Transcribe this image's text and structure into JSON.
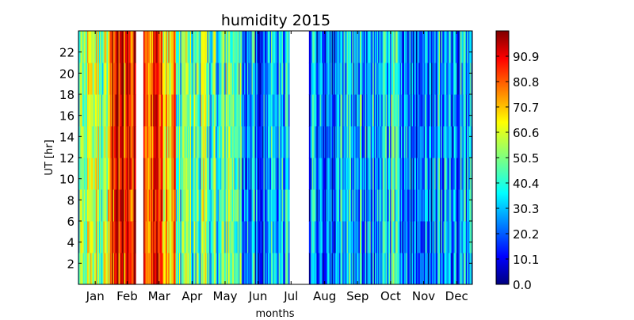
{
  "chart_data": {
    "type": "heatmap",
    "title": "humidity 2015",
    "xlabel": "months",
    "ylabel": "UT [hr]",
    "x_ticks": [
      "Jan",
      "Feb",
      "Mar",
      "Apr",
      "May",
      "Jun",
      "Jul",
      "Aug",
      "Sep",
      "Oct",
      "Nov",
      "Dec"
    ],
    "y_ticks": [
      2,
      4,
      6,
      8,
      10,
      12,
      14,
      16,
      18,
      20,
      22
    ],
    "xlim_days": [
      1,
      365
    ],
    "ylim": [
      0,
      24
    ],
    "colorbar": {
      "colormap": "jet",
      "range": [
        0.0,
        101.0
      ],
      "ticks": [
        "0.0",
        "10.1",
        "20.2",
        "30.3",
        "40.4",
        "50.5",
        "60.6",
        "70.7",
        "80.8",
        "90.9"
      ]
    },
    "missing_data_days": [
      [
        54,
        60
      ],
      [
        196,
        213
      ]
    ],
    "monthly_humidity_profile": {
      "months": [
        "Jan",
        "Feb",
        "Mar",
        "Apr",
        "May",
        "Jun",
        "Jul",
        "Aug",
        "Sep",
        "Oct",
        "Nov",
        "Dec"
      ],
      "typical_percent": [
        50,
        85,
        80,
        45,
        45,
        25,
        25,
        25,
        30,
        35,
        25,
        30
      ]
    }
  }
}
